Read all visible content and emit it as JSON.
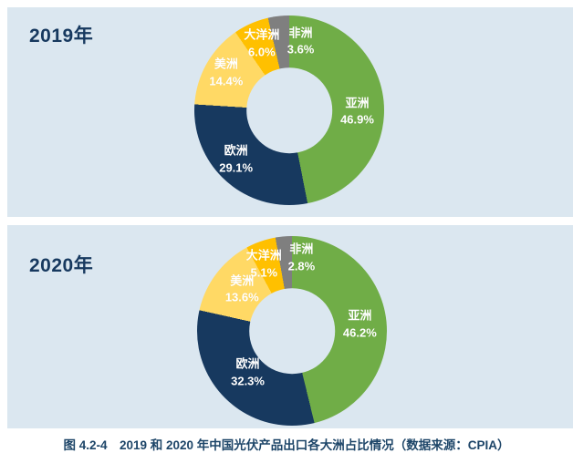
{
  "caption": "图 4.2-4　2019 和 2020 年中国光伏产品出口各大洲占比情况（数据来源：CPIA）",
  "colors": {
    "page_bg": "#ffffff",
    "panel_bg": "#dbe7f0",
    "title_color": "#17395f",
    "caption_color": "#1d4568",
    "label_color": "#ffffff",
    "asia_green": "#70ad47",
    "europe_navy": "#17395f",
    "americas_yellow": "#ffd965",
    "oceania_amber": "#ffc000",
    "africa_gray": "#7f7f7f"
  },
  "chart_data": [
    {
      "type": "pie",
      "title": "2019年",
      "donut": true,
      "hole_ratio": 0.45,
      "start_angle_deg": 0,
      "direction": "clockwise",
      "legend_position": "none",
      "labels_position": "on-slices",
      "label_radius_ratio": 0.72,
      "label_format": "name + percent, one decimal",
      "slices": [
        {
          "label": "亚洲",
          "value": 46.9,
          "color": "#70ad47",
          "label_offset": [
            0,
            9
          ]
        },
        {
          "label": "欧洲",
          "value": 29.1,
          "color": "#17395f",
          "label_offset": [
            -9,
            -2
          ]
        },
        {
          "label": "美洲",
          "value": 14.4,
          "color": "#ffd965",
          "label_offset": [
            -4,
            -4
          ]
        },
        {
          "label": "大洋洲",
          "value": 6.0,
          "color": "#ffc000",
          "label_offset": [
            0,
            -4
          ]
        },
        {
          "label": "非洲",
          "value": 3.6,
          "color": "#7f7f7f",
          "label_offset": [
            21,
            -1
          ]
        }
      ]
    },
    {
      "type": "pie",
      "title": "2020年",
      "donut": true,
      "hole_ratio": 0.45,
      "start_angle_deg": 0,
      "direction": "clockwise",
      "legend_position": "none",
      "labels_position": "on-slices",
      "label_radius_ratio": 0.72,
      "label_format": "name + percent, one decimal",
      "slices": [
        {
          "label": "亚洲",
          "value": 46.2,
          "color": "#70ad47",
          "label_offset": [
            0,
            2
          ]
        },
        {
          "label": "欧洲",
          "value": 32.3,
          "color": "#17395f",
          "label_offset": [
            4,
            -7
          ]
        },
        {
          "label": "美洲",
          "value": 13.6,
          "color": "#ffd965",
          "label_offset": [
            5,
            0
          ]
        },
        {
          "label": "大洋洲",
          "value": 5.1,
          "color": "#ffc000",
          "label_offset": [
            -6,
            -2
          ]
        },
        {
          "label": "非洲",
          "value": 2.8,
          "color": "#7f7f7f",
          "label_offset": [
            17,
            -5
          ]
        }
      ]
    }
  ]
}
